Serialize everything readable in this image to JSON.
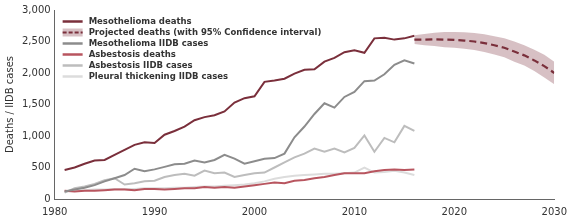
{
  "chart_data": {
    "type": "line",
    "y_label": "Deaths / IIDB cases",
    "xlim": [
      1980,
      2030
    ],
    "xticks": [
      1980,
      1990,
      2000,
      2010,
      2020,
      2030
    ],
    "ylim": [
      0,
      3000
    ],
    "yticks": [
      0,
      500,
      {
        "value": 1000,
        "label": "1,000"
      },
      {
        "value": 1500,
        "label": "1,500"
      },
      {
        "value": 2000,
        "label": "2,000"
      },
      {
        "value": 2500,
        "label": "2,500"
      },
      {
        "value": 3000,
        "label": "3,000"
      }
    ],
    "grid": false,
    "legend": "top-left",
    "series": [
      {
        "name": "Mesothelioma deaths",
        "color": "#7a2f3b",
        "x": [
          1981,
          1982,
          1983,
          1984,
          1985,
          1986,
          1987,
          1988,
          1989,
          1990,
          1991,
          1992,
          1993,
          1994,
          1995,
          1996,
          1997,
          1998,
          1999,
          2000,
          2001,
          2002,
          2003,
          2004,
          2005,
          2006,
          2007,
          2008,
          2009,
          2010,
          2011,
          2012,
          2013,
          2014,
          2015,
          2016
        ],
        "values": [
          460,
          500,
          560,
          610,
          620,
          700,
          780,
          860,
          900,
          890,
          1020,
          1080,
          1150,
          1250,
          1300,
          1330,
          1390,
          1530,
          1600,
          1630,
          1860,
          1880,
          1910,
          1990,
          2050,
          2060,
          2180,
          2240,
          2330,
          2360,
          2320,
          2550,
          2560,
          2530,
          2550,
          2590
        ]
      },
      {
        "name": "Projected deaths (with 95% Confidence interval)",
        "color": "#7a2f3b",
        "line_style": "dashed",
        "x": [
          2016,
          2017,
          2018,
          2019,
          2020,
          2021,
          2022,
          2023,
          2024,
          2025,
          2026,
          2027,
          2028,
          2029,
          2030
        ],
        "values": [
          2530,
          2530,
          2535,
          2530,
          2525,
          2515,
          2500,
          2475,
          2440,
          2400,
          2340,
          2280,
          2200,
          2110,
          2000
        ],
        "ci_lower": [
          2460,
          2440,
          2430,
          2410,
          2400,
          2385,
          2365,
          2335,
          2295,
          2250,
          2180,
          2120,
          2030,
          1930,
          1820
        ],
        "ci_upper": [
          2600,
          2620,
          2640,
          2650,
          2650,
          2645,
          2635,
          2615,
          2585,
          2550,
          2500,
          2440,
          2370,
          2290,
          2180
        ]
      },
      {
        "name": "Mesothelioma IIDB cases",
        "color": "#8c8c8c",
        "x": [
          1981,
          1982,
          1983,
          1984,
          1985,
          1986,
          1987,
          1988,
          1989,
          1990,
          1991,
          1992,
          1993,
          1994,
          1995,
          1996,
          1997,
          1998,
          1999,
          2000,
          2001,
          2002,
          2003,
          2004,
          2005,
          2006,
          2007,
          2008,
          2009,
          2010,
          2011,
          2012,
          2013,
          2014,
          2015,
          2016
        ],
        "values": [
          120,
          150,
          180,
          220,
          280,
          330,
          380,
          480,
          440,
          470,
          510,
          550,
          560,
          610,
          580,
          620,
          700,
          640,
          560,
          600,
          640,
          650,
          720,
          980,
          1150,
          1350,
          1520,
          1450,
          1620,
          1700,
          1870,
          1880,
          1980,
          2130,
          2200,
          2150
        ]
      },
      {
        "name": "Asbestosis deaths",
        "color": "#b8555f",
        "x": [
          1981,
          1982,
          1983,
          1984,
          1985,
          1986,
          1987,
          1988,
          1989,
          1990,
          1991,
          1992,
          1993,
          1994,
          1995,
          1996,
          1997,
          1998,
          1999,
          2000,
          2001,
          2002,
          2003,
          2004,
          2005,
          2006,
          2007,
          2008,
          2009,
          2010,
          2011,
          2012,
          2013,
          2014,
          2015,
          2016
        ],
        "values": [
          130,
          120,
          130,
          130,
          140,
          150,
          150,
          140,
          160,
          160,
          150,
          160,
          170,
          170,
          190,
          180,
          190,
          180,
          200,
          220,
          240,
          260,
          250,
          290,
          300,
          330,
          350,
          380,
          410,
          410,
          410,
          440,
          460,
          470,
          460,
          470
        ]
      },
      {
        "name": "Asbestosis IIDB cases",
        "color": "#bdbdbd",
        "x": [
          1981,
          1982,
          1983,
          1984,
          1985,
          1986,
          1987,
          1988,
          1989,
          1990,
          1991,
          1992,
          1993,
          1994,
          1995,
          1996,
          1997,
          1998,
          1999,
          2000,
          2001,
          2002,
          2003,
          2004,
          2005,
          2006,
          2007,
          2008,
          2009,
          2010,
          2011,
          2012,
          2013,
          2014,
          2015,
          2016
        ],
        "values": [
          100,
          170,
          200,
          240,
          300,
          330,
          230,
          250,
          280,
          290,
          350,
          380,
          400,
          370,
          450,
          410,
          420,
          350,
          380,
          410,
          420,
          500,
          580,
          660,
          720,
          800,
          750,
          800,
          740,
          810,
          1010,
          750,
          970,
          900,
          1160,
          1080
        ]
      },
      {
        "name": "Pleural thickening IIDB cases",
        "color": "#dcdcdc",
        "x": [
          1981,
          1982,
          1983,
          1984,
          1985,
          1986,
          1987,
          1988,
          1989,
          1990,
          1991,
          1992,
          1993,
          1994,
          1995,
          1996,
          1997,
          1998,
          1999,
          2000,
          2001,
          2002,
          2003,
          2004,
          2005,
          2006,
          2007,
          2008,
          2009,
          2010,
          2011,
          2012,
          2013,
          2014,
          2015,
          2016
        ],
        "values": [
          120,
          130,
          140,
          150,
          150,
          160,
          160,
          160,
          170,
          170,
          170,
          180,
          180,
          190,
          200,
          200,
          210,
          220,
          230,
          250,
          280,
          320,
          350,
          370,
          380,
          390,
          400,
          400,
          410,
          420,
          500,
          420,
          430,
          450,
          420,
          380
        ]
      }
    ]
  }
}
